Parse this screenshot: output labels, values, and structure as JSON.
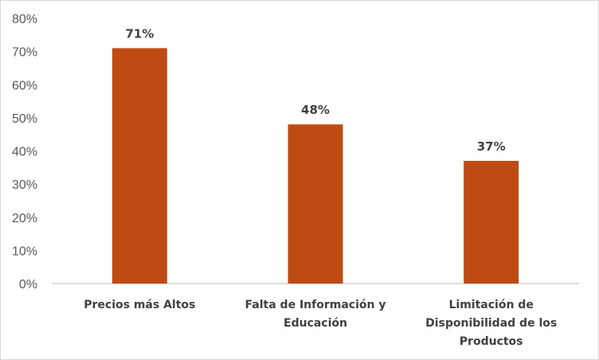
{
  "colors": {
    "bar": "#BE4B13",
    "axis": "#bfbfbf",
    "tick_text": "#595959",
    "label_text": "#404040"
  },
  "chart_data": {
    "type": "bar",
    "categories": [
      [
        "Precios más Altos"
      ],
      [
        "Falta de Información y",
        "Educación"
      ],
      [
        "Limitación de",
        "Disponibilidad de los",
        "Productos"
      ]
    ],
    "values": [
      71,
      48,
      37
    ],
    "data_labels": [
      "71%",
      "48%",
      "37%"
    ],
    "yticks": [
      "0%",
      "10%",
      "20%",
      "30%",
      "40%",
      "50%",
      "60%",
      "70%",
      "80%"
    ],
    "ylim": [
      0,
      80
    ],
    "grid": false,
    "legend": "none",
    "title": "",
    "xlabel": "",
    "ylabel": ""
  }
}
